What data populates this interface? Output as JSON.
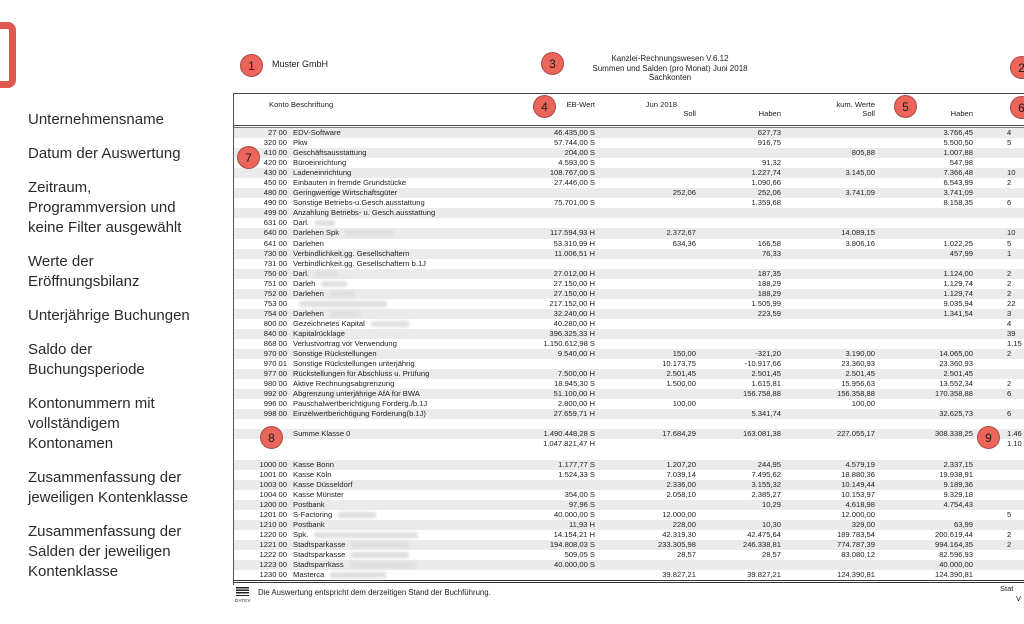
{
  "accent_color": "#EC655B",
  "sidebar": {
    "items": [
      "Unternehmensname",
      "Datum der Auswertung",
      "Zeitraum,\nProgrammversion und\nkeine Filter ausgewählt",
      "Werte der\nEröffnungsbilanz",
      "Unterjährige Buchungen",
      "Saldo der\nBuchungsperiode",
      "Kontonummern mit\nvollständigem\nKontonamen",
      "Zusammenfassung der\njeweiligen Kontenklasse",
      "Zusammenfassung der\nSalden der jeweiligen\nKontenklasse"
    ]
  },
  "markers": [
    "1",
    "2",
    "3",
    "4",
    "5",
    "6",
    "7",
    "8",
    "9"
  ],
  "report": {
    "company": "Muster GmbH",
    "title": "Kanzlei-Rechnungswesen V.6.12\nSummen und Salden (pro Monat)    Juni 2018\nSachkonten",
    "columns": {
      "konto": "Konto Beschriftung",
      "eb": "EB-Wert",
      "jun": "Jun 2018",
      "soll": "Soll",
      "haben": "Haben",
      "kum": "kum. Werte",
      "soll2": "Soll",
      "haben2": "Haben"
    },
    "rows": [
      {
        "t": "a",
        "s": 1,
        "num": "27 00",
        "name": "EDV-Software",
        "eb": "46.435,00 S",
        "js": "",
        "jh": "627,73",
        "ks": "",
        "kh": "3.766,45",
        "cut": "4",
        "red": 0
      },
      {
        "t": "a",
        "s": 0,
        "num": "320 00",
        "name": "Pkw",
        "eb": "57.744,00 S",
        "js": "",
        "jh": "916,75",
        "ks": "",
        "kh": "5.500,50",
        "cut": "5",
        "red": 0
      },
      {
        "t": "a",
        "s": 1,
        "num": "410 00",
        "name": "Geschäftsausstattung",
        "eb": "204,00 S",
        "js": "",
        "jh": "",
        "ks": "805,88",
        "kh": "1.007,88",
        "cut": "",
        "red": 0
      },
      {
        "t": "a",
        "s": 0,
        "num": "420 00",
        "name": "Büroeinrichtung",
        "eb": "4.593,00 S",
        "js": "",
        "jh": "91,32",
        "ks": "",
        "kh": "547,98",
        "cut": "",
        "red": 0
      },
      {
        "t": "a",
        "s": 1,
        "num": "430 00",
        "name": "Ladeneinrichtung",
        "eb": "108.767,00 S",
        "js": "",
        "jh": "1.227,74",
        "ks": "3.145,00",
        "kh": "7.366,48",
        "cut": "10",
        "red": 0
      },
      {
        "t": "a",
        "s": 0,
        "num": "450 00",
        "name": "Einbauten in fremde Grundstücke",
        "eb": "27.446,00 S",
        "js": "",
        "jh": "1.090,66",
        "ks": "",
        "kh": "6.543,99",
        "cut": "2",
        "red": 0
      },
      {
        "t": "a",
        "s": 1,
        "num": "480 00",
        "name": "Geringwertige Wirtschaftsgüter",
        "eb": "",
        "js": "252,06",
        "jh": "252,06",
        "ks": "3.741,09",
        "kh": "3.741,09",
        "cut": "",
        "red": 0
      },
      {
        "t": "a",
        "s": 0,
        "num": "490 00",
        "name": "Sonstige Betriebs-u.Gesch.ausstattung",
        "eb": "75.701,00 S",
        "js": "",
        "jh": "1.359,68",
        "ks": "",
        "kh": "8.158,35",
        "cut": "6",
        "red": 0
      },
      {
        "t": "a",
        "s": 1,
        "num": "499 00",
        "name": "Anzahlung Betriebs- u. Gesch.ausstattung",
        "eb": "",
        "js": "",
        "jh": "",
        "ks": "",
        "kh": "",
        "cut": "",
        "red": 0
      },
      {
        "t": "a",
        "s": 0,
        "num": "631 00",
        "name": "Darl.",
        "eb": "",
        "js": "",
        "jh": "",
        "ks": "",
        "kh": "",
        "cut": "",
        "red": 20
      },
      {
        "t": "a",
        "s": 1,
        "num": "640 00",
        "name": "Darlehen Spk",
        "eb": "117.594,93 H",
        "js": "2.372,67",
        "jh": "",
        "ks": "14.089,15",
        "kh": "",
        "cut": "10",
        "red": 48
      },
      {
        "t": "a",
        "s": 0,
        "num": "641 00",
        "name": "Darlehen",
        "eb": "53.310,99 H",
        "js": "634,36",
        "jh": "166,58",
        "ks": "3.806,16",
        "kh": "1.022,25",
        "cut": "5",
        "red": 0
      },
      {
        "t": "a",
        "s": 1,
        "num": "730 00",
        "name": "Verbindlichkeit.gg. Gesellschaftern",
        "eb": "11.006,51 H",
        "js": "",
        "jh": "76,33",
        "ks": "",
        "kh": "457,99",
        "cut": "1",
        "red": 0
      },
      {
        "t": "a",
        "s": 0,
        "num": "731 00",
        "name": "Verbindlichkeit.gg. Gesellschaftern b.1J",
        "eb": "",
        "js": "",
        "jh": "",
        "ks": "",
        "kh": "",
        "cut": "",
        "red": 0
      },
      {
        "t": "a",
        "s": 1,
        "num": "750 00",
        "name": "Darl.",
        "eb": "27.012,00 H",
        "js": "",
        "jh": "187,35",
        "ks": "",
        "kh": "1.124,00",
        "cut": "2",
        "red": 22
      },
      {
        "t": "a",
        "s": 0,
        "num": "751 00",
        "name": "Darleh",
        "eb": "27.150,00 H",
        "js": "",
        "jh": "188,29",
        "ks": "",
        "kh": "1.129,74",
        "cut": "2",
        "red": 26
      },
      {
        "t": "a",
        "s": 1,
        "num": "752 00",
        "name": "Darlehen",
        "eb": "27.150,00 H",
        "js": "",
        "jh": "188,29",
        "ks": "",
        "kh": "1.129,74",
        "cut": "2",
        "red": 24
      },
      {
        "t": "a",
        "s": 0,
        "num": "753 00",
        "name": "",
        "eb": "217.152,00 H",
        "js": "",
        "jh": "1.505,99",
        "ks": "",
        "kh": "9.035,94",
        "cut": "22",
        "red": 88
      },
      {
        "t": "a",
        "s": 1,
        "num": "754 00",
        "name": "Darlehen",
        "eb": "32.240,00 H",
        "js": "",
        "jh": "223,59",
        "ks": "",
        "kh": "1.341,54",
        "cut": "3",
        "red": 30
      },
      {
        "t": "a",
        "s": 0,
        "num": "800 00",
        "name": "Gezeichnetes Kapital",
        "eb": "40.280,00 H",
        "js": "",
        "jh": "",
        "ks": "",
        "kh": "",
        "cut": "4",
        "red": 38
      },
      {
        "t": "a",
        "s": 1,
        "num": "840 00",
        "name": "Kapitalrücklage",
        "eb": "396.325,33 H",
        "js": "",
        "jh": "",
        "ks": "",
        "kh": "",
        "cut": "39",
        "red": 0
      },
      {
        "t": "a",
        "s": 0,
        "num": "868 00",
        "name": "Verlustvortrag vor Verwendung",
        "eb": "1.150.612,98 S",
        "js": "",
        "jh": "",
        "ks": "",
        "kh": "",
        "cut": "1.15",
        "red": 0
      },
      {
        "t": "a",
        "s": 1,
        "num": "970 00",
        "name": "Sonstige Rückstellungen",
        "eb": "9.540,00 H",
        "js": "150,00",
        "jh": "-321,20",
        "ks": "3.190,00",
        "kh": "14.065,00",
        "cut": "2",
        "red": 0
      },
      {
        "t": "a",
        "s": 0,
        "num": "970 01",
        "name": "Sonstige Rückstellungen unterjährig",
        "eb": "",
        "js": "10.173,75",
        "jh": "-10.917,66",
        "ks": "23.360,93",
        "kh": "23.360,93",
        "cut": "",
        "red": 0
      },
      {
        "t": "a",
        "s": 1,
        "num": "977 00",
        "name": "Rückstellungen für Abschluss u. Prüfung",
        "eb": "7.500,00 H",
        "js": "2.501,45",
        "jh": "2.501,45",
        "ks": "2.501,45",
        "kh": "2.501,45",
        "cut": "",
        "red": 0
      },
      {
        "t": "a",
        "s": 0,
        "num": "980 00",
        "name": "Aktive Rechnungsabgrenzung",
        "eb": "18.945,30 S",
        "js": "1.500,00",
        "jh": "1.615,81",
        "ks": "15.956,63",
        "kh": "13.552,34",
        "cut": "2",
        "red": 0
      },
      {
        "t": "a",
        "s": 1,
        "num": "992 00",
        "name": "Abgrenzung unterjährige AfA für BWA",
        "eb": "51.100,00 H",
        "js": "",
        "jh": "156.758,88",
        "ks": "156.358,88",
        "kh": "170.358,88",
        "cut": "6",
        "red": 0
      },
      {
        "t": "a",
        "s": 0,
        "num": "996 00",
        "name": "Pauschalwertberichtigung Forderg./b.1J",
        "eb": "2.800,00 H",
        "js": "100,00",
        "jh": "",
        "ks": "100,00",
        "kh": "",
        "cut": "",
        "red": 0
      },
      {
        "t": "a",
        "s": 1,
        "num": "998 00",
        "name": "Einzelwertberichtigung Forderung(b.1J)",
        "eb": "27.659,71 H",
        "js": "",
        "jh": "5.341,74",
        "ks": "",
        "kh": "32.625,73",
        "cut": "6",
        "red": 0
      },
      {
        "t": "b",
        "s": 0,
        "num": "",
        "name": "",
        "eb": "",
        "js": "",
        "jh": "",
        "ks": "",
        "kh": "",
        "cut": "",
        "red": 0
      },
      {
        "t": "m",
        "s": 1,
        "num": "",
        "name": "Summe Klasse 0",
        "eb": "1.490.448,28 S",
        "js": "17.684,29",
        "jh": "163.081,38",
        "ks": "227.055,17",
        "kh": "308.338,25",
        "cut": "1.46",
        "red": 0
      },
      {
        "t": "m",
        "s": 0,
        "num": "",
        "name": "",
        "eb": "1.047.821,47 H",
        "js": "",
        "jh": "",
        "ks": "",
        "kh": "",
        "cut": "1.10",
        "red": 0
      },
      {
        "t": "b",
        "s": 0,
        "num": "",
        "name": "",
        "eb": "",
        "js": "",
        "jh": "",
        "ks": "",
        "kh": "",
        "cut": "",
        "red": 0
      },
      {
        "t": "a",
        "s": 1,
        "num": "1000 00",
        "name": "Kasse Bonn",
        "eb": "1.177,77 S",
        "js": "1.207,20",
        "jh": "244,95",
        "ks": "4.579,19",
        "kh": "2.337,15",
        "cut": "",
        "red": 0
      },
      {
        "t": "a",
        "s": 0,
        "num": "1001 00",
        "name": "Kasse Köln",
        "eb": "1.524,33 S",
        "js": "7.039,14",
        "jh": "7.495,62",
        "ks": "18.880,36",
        "kh": "19.938,91",
        "cut": "",
        "red": 0
      },
      {
        "t": "a",
        "s": 1,
        "num": "1003 00",
        "name": "Kasse Düsseldorf",
        "eb": "",
        "js": "2.336,00",
        "jh": "3.155,32",
        "ks": "10.149,44",
        "kh": "9.189,36",
        "cut": "",
        "red": 0
      },
      {
        "t": "a",
        "s": 0,
        "num": "1004 00",
        "name": "Kasse Münster",
        "eb": "354,00 S",
        "js": "2.058,10",
        "jh": "2.385,27",
        "ks": "10.153,97",
        "kh": "9.329,18",
        "cut": "",
        "red": 0
      },
      {
        "t": "a",
        "s": 1,
        "num": "1200 00",
        "name": "Postbank",
        "eb": "97,96 S",
        "js": "",
        "jh": "10,29",
        "ks": "4.618,98",
        "kh": "4.754,43",
        "cut": "",
        "red": 0
      },
      {
        "t": "a",
        "s": 0,
        "num": "1201 00",
        "name": "S-Factoring",
        "eb": "40.000,00 S",
        "js": "12.000,00",
        "jh": "",
        "ks": "12.000,00",
        "kh": "",
        "cut": "5",
        "red": 38
      },
      {
        "t": "a",
        "s": 1,
        "num": "1210 00",
        "name": "Postbank",
        "eb": "11,93 H",
        "js": "228,00",
        "jh": "10,30",
        "ks": "329,00",
        "kh": "63,99",
        "cut": "",
        "red": 0
      },
      {
        "t": "a",
        "s": 0,
        "num": "1220 00",
        "name": "Spk.",
        "eb": "14.154,21 H",
        "js": "42.319,30",
        "jh": "42.475,64",
        "ks": "189.783,54",
        "kh": "200.619,44",
        "cut": "2",
        "red": 104
      },
      {
        "t": "a",
        "s": 1,
        "num": "1221 00",
        "name": "Stadtsparkasse",
        "eb": "194.808,03 S",
        "js": "233.305,98",
        "jh": "246.338,81",
        "ks": "774.787,39",
        "kh": "994.164,35",
        "cut": "2",
        "red": 58
      },
      {
        "t": "a",
        "s": 0,
        "num": "1222 00",
        "name": "Stadtsparkasse",
        "eb": "509,05 S",
        "js": "28,57",
        "jh": "28,57",
        "ks": "83.080,12",
        "kh": "82.596,93",
        "cut": "",
        "red": 58
      },
      {
        "t": "a",
        "s": 1,
        "num": "1223 00",
        "name": "Stadtsparrkass",
        "eb": "40.000,00 S",
        "js": "",
        "jh": "",
        "ks": "",
        "kh": "40.000,00",
        "cut": "",
        "red": 66
      },
      {
        "t": "a",
        "s": 0,
        "num": "1230 00",
        "name": "Masterca",
        "eb": "",
        "js": "39.827,21",
        "jh": "39.827,21",
        "ks": "124.390,81",
        "kh": "124.390,81",
        "cut": "",
        "red": 56
      }
    ],
    "footer": {
      "logo": "DATEV",
      "note": "Die Auswertung entspricht dem derzeitigen Stand der Buchführung.",
      "cut_right_line1": "Stat",
      "cut_right_line2": "V"
    }
  }
}
